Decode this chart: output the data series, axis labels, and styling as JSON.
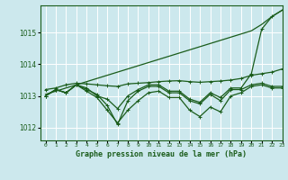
{
  "title": "Graphe pression niveau de la mer (hPa)",
  "x_labels": [
    "0",
    "1",
    "2",
    "3",
    "4",
    "5",
    "6",
    "7",
    "8",
    "9",
    "10",
    "11",
    "12",
    "13",
    "14",
    "15",
    "16",
    "17",
    "18",
    "19",
    "20",
    "21",
    "22",
    "23"
  ],
  "xlim": [
    -0.5,
    23
  ],
  "ylim": [
    1011.6,
    1015.85
  ],
  "yticks": [
    1012,
    1013,
    1014,
    1015
  ],
  "background_color": "#cce8ed",
  "grid_color": "#ffffff",
  "line_color": "#1a5c1a",
  "series": {
    "straight": [
      1013.05,
      1013.15,
      1013.25,
      1013.35,
      1013.45,
      1013.55,
      1013.65,
      1013.75,
      1013.85,
      1013.95,
      1014.05,
      1014.15,
      1014.25,
      1014.35,
      1014.45,
      1014.55,
      1014.65,
      1014.75,
      1014.85,
      1014.95,
      1015.05,
      1015.25,
      1015.5,
      1015.7
    ],
    "flat": [
      1013.2,
      1013.25,
      1013.35,
      1013.4,
      1013.38,
      1013.35,
      1013.32,
      1013.3,
      1013.38,
      1013.4,
      1013.42,
      1013.45,
      1013.47,
      1013.48,
      1013.45,
      1013.43,
      1013.45,
      1013.47,
      1013.5,
      1013.55,
      1013.65,
      1013.7,
      1013.75,
      1013.85
    ],
    "wavy1": [
      1013.0,
      1013.2,
      1013.1,
      1013.35,
      1013.15,
      1012.95,
      1012.55,
      1012.15,
      1012.55,
      1012.85,
      1013.1,
      1013.15,
      1012.95,
      1012.95,
      1012.55,
      1012.35,
      1012.65,
      1012.5,
      1013.0,
      1013.1,
      1013.3,
      1013.35,
      1013.25,
      1013.25
    ],
    "wavy2": [
      1013.0,
      1013.2,
      1013.1,
      1013.35,
      1013.2,
      1013.05,
      1012.7,
      1012.1,
      1012.85,
      1013.15,
      1013.3,
      1013.3,
      1013.1,
      1013.1,
      1012.85,
      1012.75,
      1013.05,
      1012.85,
      1013.2,
      1013.2,
      1013.35,
      1013.4,
      1013.3,
      1013.3
    ],
    "spike": [
      1013.0,
      1013.2,
      1013.1,
      1013.35,
      1013.25,
      1013.0,
      1012.9,
      1012.6,
      1013.0,
      1013.2,
      1013.35,
      1013.35,
      1013.15,
      1013.15,
      1012.9,
      1012.8,
      1013.1,
      1012.95,
      1013.25,
      1013.25,
      1013.7,
      1015.1,
      1015.5,
      1015.7
    ]
  }
}
